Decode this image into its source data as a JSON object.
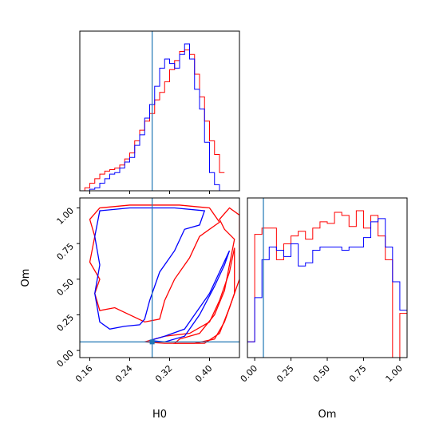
{
  "chart_data": [
    {
      "type": "histogram",
      "panel": "H0 marginal",
      "xlim": [
        0.14,
        0.46
      ],
      "truth": 0.285,
      "series": [
        {
          "color": "#ff0000",
          "bin_start": 0.12,
          "bin_width": 0.01,
          "values": [
            0,
            0,
            0,
            2,
            5,
            8,
            11,
            13,
            14,
            15,
            17,
            21,
            25,
            33,
            40,
            46,
            51,
            60,
            65,
            72,
            80,
            86,
            92,
            93,
            90,
            77,
            62,
            46,
            33,
            24,
            12
          ]
        },
        {
          "color": "#0000ff",
          "bin_start": 0.12,
          "bin_width": 0.01,
          "values": [
            0,
            0,
            0,
            0,
            1,
            2,
            5,
            8,
            11,
            12,
            15,
            19,
            22,
            30,
            37,
            48,
            57,
            69,
            81,
            87,
            84,
            81,
            90,
            97,
            87,
            67,
            54,
            32,
            12,
            4,
            0
          ]
        }
      ]
    },
    {
      "type": "contour",
      "panel": "H0 vs Om",
      "xlabel": "H0",
      "ylabel": "Om",
      "xlim": [
        0.14,
        0.46
      ],
      "ylim": [
        -0.05,
        1.07
      ],
      "xticks": [
        "0.16",
        "0.24",
        "0.32",
        "0.40"
      ],
      "yticks": [
        "0.00",
        "0.25",
        "0.50",
        "0.75",
        "1.00"
      ],
      "truth": {
        "x": 0.285,
        "y": 0.06
      },
      "series": [
        {
          "color": "#ff0000",
          "contours": [
            [
              [
                0.18,
                1.0
              ],
              [
                0.24,
                1.02
              ],
              [
                0.34,
                1.02
              ],
              [
                0.4,
                1.0
              ],
              [
                0.42,
                0.9
              ],
              [
                0.38,
                0.8
              ],
              [
                0.36,
                0.65
              ],
              [
                0.33,
                0.5
              ],
              [
                0.31,
                0.35
              ],
              [
                0.3,
                0.22
              ],
              [
                0.27,
                0.2
              ],
              [
                0.24,
                0.25
              ],
              [
                0.21,
                0.3
              ],
              [
                0.18,
                0.28
              ],
              [
                0.17,
                0.4
              ],
              [
                0.18,
                0.5
              ],
              [
                0.16,
                0.62
              ],
              [
                0.17,
                0.8
              ],
              [
                0.16,
                0.92
              ]
            ],
            [
              [
                0.27,
                0.06
              ],
              [
                0.31,
                0.05
              ],
              [
                0.37,
                0.05
              ],
              [
                0.41,
                0.08
              ],
              [
                0.43,
                0.2
              ],
              [
                0.45,
                0.4
              ],
              [
                0.45,
                0.6
              ],
              [
                0.45,
                0.72
              ],
              [
                0.44,
                0.55
              ],
              [
                0.42,
                0.35
              ],
              [
                0.4,
                0.2
              ],
              [
                0.36,
                0.12
              ],
              [
                0.31,
                0.1
              ]
            ],
            [
              [
                0.33,
                0.05
              ],
              [
                0.39,
                0.05
              ],
              [
                0.42,
                0.12
              ],
              [
                0.44,
                0.3
              ],
              [
                0.46,
                0.5
              ],
              [
                0.46,
                0.75
              ],
              [
                0.46,
                0.95
              ],
              [
                0.44,
                1.0
              ],
              [
                0.42,
                0.92
              ],
              [
                0.43,
                0.85
              ],
              [
                0.45,
                0.78
              ],
              [
                0.44,
                0.6
              ],
              [
                0.43,
                0.42
              ],
              [
                0.41,
                0.25
              ],
              [
                0.38,
                0.12
              ],
              [
                0.34,
                0.08
              ]
            ]
          ]
        },
        {
          "color": "#0000ff",
          "contours": [
            [
              [
                0.18,
                0.98
              ],
              [
                0.24,
                1.0
              ],
              [
                0.33,
                1.0
              ],
              [
                0.39,
                0.98
              ],
              [
                0.38,
                0.88
              ],
              [
                0.35,
                0.85
              ],
              [
                0.33,
                0.7
              ],
              [
                0.3,
                0.55
              ],
              [
                0.28,
                0.35
              ],
              [
                0.27,
                0.22
              ],
              [
                0.26,
                0.18
              ],
              [
                0.23,
                0.17
              ],
              [
                0.2,
                0.15
              ],
              [
                0.18,
                0.2
              ],
              [
                0.17,
                0.4
              ],
              [
                0.18,
                0.6
              ],
              [
                0.17,
                0.8
              ]
            ],
            [
              [
                0.28,
                0.07
              ],
              [
                0.31,
                0.06
              ],
              [
                0.35,
                0.1
              ],
              [
                0.38,
                0.25
              ],
              [
                0.41,
                0.45
              ],
              [
                0.43,
                0.6
              ],
              [
                0.44,
                0.7
              ],
              [
                0.42,
                0.55
              ],
              [
                0.4,
                0.4
              ],
              [
                0.37,
                0.25
              ],
              [
                0.35,
                0.15
              ],
              [
                0.31,
                0.1
              ]
            ]
          ]
        }
      ]
    },
    {
      "type": "histogram",
      "panel": "Om marginal",
      "xlabel": "Om",
      "xlim": [
        -0.05,
        1.05
      ],
      "xticks": [
        "0.00",
        "0.25",
        "0.50",
        "0.75",
        "1.00"
      ],
      "truth": 0.06,
      "series": [
        {
          "color": "#ff0000",
          "bin_start": -0.05,
          "bin_width": 0.05,
          "values": [
            10,
            78,
            82,
            82,
            62,
            72,
            77,
            80,
            75,
            82,
            86,
            85,
            92,
            90,
            83,
            93,
            82,
            90,
            77,
            62,
            0,
            28
          ]
        },
        {
          "color": "#0000ff",
          "bin_start": -0.05,
          "bin_width": 0.05,
          "values": [
            10,
            38,
            62,
            70,
            68,
            64,
            72,
            58,
            60,
            68,
            70,
            70,
            70,
            68,
            70,
            70,
            76,
            86,
            88,
            70,
            48,
            30
          ]
        }
      ]
    }
  ]
}
